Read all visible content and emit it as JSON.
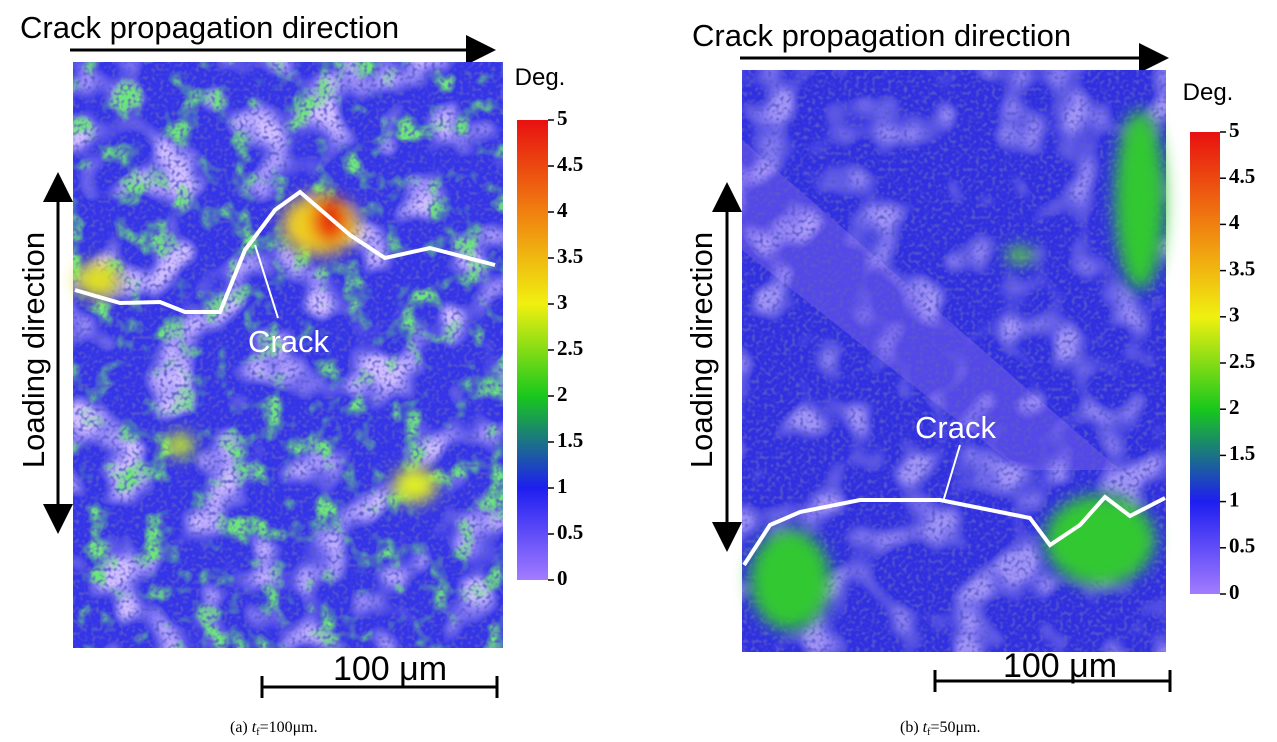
{
  "panels": [
    {
      "title": "Crack propagation direction",
      "side_label": "Loading direction",
      "crack_label": "Crack",
      "scale_bar": "100 μm",
      "colorbar": {
        "unit": "Deg.",
        "ticks": [
          0,
          0.5,
          1,
          1.5,
          2,
          2.5,
          3,
          3.5,
          4,
          4.5,
          5
        ]
      },
      "caption": {
        "prefix": "(a) ",
        "variable": "t",
        "subscript": "f",
        "rest": "=100μm."
      }
    },
    {
      "title": "Crack propagation direction",
      "side_label": "Loading direction",
      "crack_label": "Crack",
      "scale_bar": "100 μm",
      "colorbar": {
        "unit": "Deg.",
        "ticks": [
          0,
          0.5,
          1,
          1.5,
          2,
          2.5,
          3,
          3.5,
          4,
          4.5,
          5
        ]
      },
      "caption": {
        "prefix": "(b) ",
        "variable": "t",
        "subscript": "f",
        "rest": "=50μm."
      }
    }
  ]
}
